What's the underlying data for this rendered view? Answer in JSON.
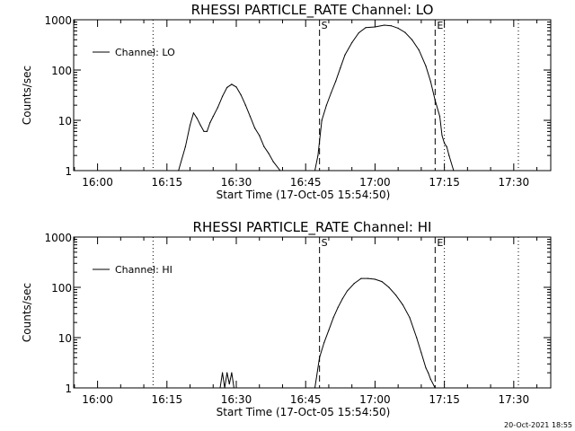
{
  "chart_data": [
    {
      "type": "line",
      "title": "RHESSI PARTICLE_RATE Channel: LO",
      "xlabel": "Start Time (17-Oct-05 15:54:50)",
      "ylabel": "Counts/sec",
      "y_scale": "log",
      "ylim": [
        1,
        1000
      ],
      "xlim": [
        "15:54:50",
        "17:38:00"
      ],
      "x_ticks": [
        "16:00",
        "16:15",
        "16:30",
        "16:45",
        "17:00",
        "17:15",
        "17:30"
      ],
      "y_ticks": [
        "1",
        "10",
        "100",
        "1000"
      ],
      "legend": {
        "placement": "top-left",
        "entries": [
          "Channel: LO"
        ]
      },
      "markers": {
        "S": "16:48",
        "E": "17:13"
      },
      "dotted_lines": [
        "16:12",
        "17:15",
        "17:31"
      ],
      "series": [
        {
          "name": "Channel: LO",
          "x": [
            "16:17:30",
            "16:19:00",
            "16:20:00",
            "16:20:45",
            "16:21:30",
            "16:22:15",
            "16:23:00",
            "16:23:40",
            "16:24:20",
            "16:25:00",
            "16:26:00",
            "16:27:00",
            "16:28:00",
            "16:29:00",
            "16:30:00",
            "16:31:00",
            "16:32:00",
            "16:33:00",
            "16:34:00",
            "16:35:00",
            "16:36:00",
            "16:37:00",
            "16:38:00",
            "16:39:30",
            "16:47:00",
            "16:47:40",
            "16:48:30",
            "16:49:30",
            "16:50:30",
            "16:51:30",
            "16:52:30",
            "16:53:30",
            "16:55:00",
            "16:56:30",
            "16:58:00",
            "17:00:00",
            "17:02:00",
            "17:03:30",
            "17:05:00",
            "17:06:30",
            "17:08:00",
            "17:09:30",
            "17:11:00",
            "17:12:00",
            "17:13:00",
            "17:14:00",
            "17:14:30",
            "17:15:00",
            "17:15:30",
            "17:16:00",
            "17:17:00"
          ],
          "y": [
            1,
            3,
            8,
            14,
            11,
            8,
            6,
            6,
            9,
            12,
            18,
            30,
            45,
            52,
            46,
            32,
            20,
            12,
            7,
            5,
            3,
            2.2,
            1.5,
            1,
            1,
            2,
            10,
            20,
            35,
            60,
            110,
            200,
            350,
            550,
            700,
            720,
            780,
            760,
            680,
            560,
            400,
            250,
            120,
            60,
            25,
            12,
            5,
            3.5,
            3,
            2,
            1
          ]
        }
      ],
      "annotations": []
    },
    {
      "type": "line",
      "title": "RHESSI PARTICLE_RATE Channel: HI",
      "xlabel": "Start Time (17-Oct-05 15:54:50)",
      "ylabel": "Counts/sec",
      "y_scale": "log",
      "ylim": [
        1,
        1000
      ],
      "xlim": [
        "15:54:50",
        "17:38:00"
      ],
      "x_ticks": [
        "16:00",
        "16:15",
        "16:30",
        "16:45",
        "17:00",
        "17:15",
        "17:30"
      ],
      "y_ticks": [
        "1",
        "10",
        "100",
        "1000"
      ],
      "legend": {
        "placement": "top-left",
        "entries": [
          "Channel: HI"
        ]
      },
      "markers": {
        "S": "16:48",
        "E": "17:13"
      },
      "dotted_lines": [
        "16:12",
        "17:15",
        "17:31"
      ],
      "series": [
        {
          "name": "Channel: HI",
          "x": [
            "16:26:30",
            "16:27:00",
            "16:27:30",
            "16:28:00",
            "16:28:30",
            "16:29:00",
            "16:29:30",
            "16:47:00",
            "16:48:00",
            "16:49:00",
            "16:50:00",
            "16:51:00",
            "16:52:00",
            "16:53:00",
            "16:54:00",
            "16:55:30",
            "16:57:00",
            "16:58:30",
            "17:00:00",
            "17:01:30",
            "17:03:00",
            "17:04:30",
            "17:06:00",
            "17:07:30",
            "17:09:00",
            "17:10:00",
            "17:11:00",
            "17:11:30",
            "17:12:00",
            "17:13:00"
          ],
          "y": [
            1,
            2,
            1,
            2,
            1.2,
            2,
            1,
            1,
            4,
            8,
            14,
            25,
            40,
            60,
            85,
            120,
            150,
            150,
            145,
            130,
            100,
            70,
            45,
            25,
            10,
            5,
            2.5,
            2,
            1.5,
            1
          ]
        }
      ],
      "annotations": []
    }
  ],
  "footer": {
    "timestamp": "20-Oct-2021 18:55"
  }
}
